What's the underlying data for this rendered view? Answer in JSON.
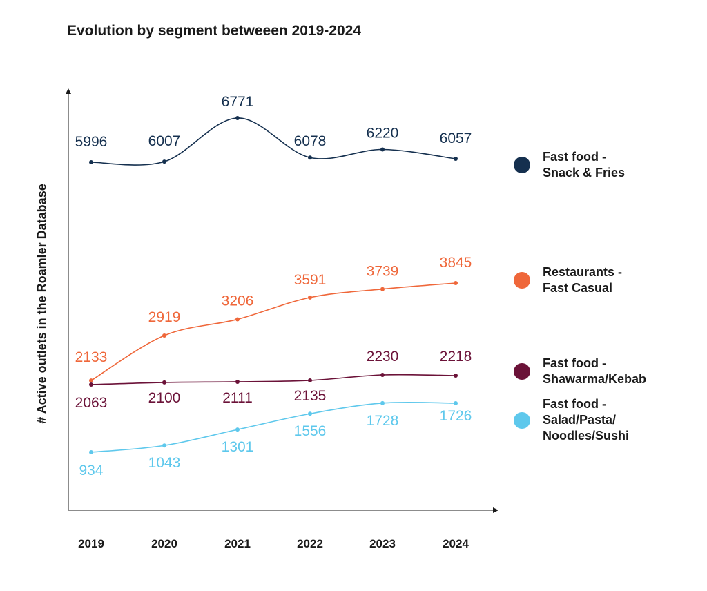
{
  "chart_data": {
    "type": "line",
    "title": "Evolution by segment betweeen 2019-2024",
    "ylabel": "# Active outlets in the Roamler Database",
    "xlabel": "",
    "categories": [
      "2019",
      "2020",
      "2021",
      "2022",
      "2023",
      "2024"
    ],
    "ylim": [
      0,
      7000
    ],
    "grid": false,
    "legend_position": "right",
    "series": [
      {
        "name": "Fast food - Snack & Fries",
        "legend_lines": [
          "Fast food -",
          "Snack & Fries"
        ],
        "color": "#15304f",
        "values": [
          5996,
          6007,
          6771,
          6078,
          6220,
          6057
        ]
      },
      {
        "name": "Restaurants - Fast Casual",
        "legend_lines": [
          "Restaurants -",
          "Fast Casual"
        ],
        "color": "#ef673a",
        "values": [
          2133,
          2919,
          3206,
          3591,
          3739,
          3845
        ]
      },
      {
        "name": "Fast food - Shawarma/Kebab",
        "legend_lines": [
          "Fast food -",
          "Shawarma/Kebab"
        ],
        "color": "#6b1238",
        "values": [
          2063,
          2100,
          2111,
          2135,
          2230,
          2218
        ]
      },
      {
        "name": "Fast food - Salad/Pasta/Noodles/Sushi",
        "legend_lines": [
          "Fast food -",
          "Salad/Pasta/",
          "Noodles/Sushi"
        ],
        "color": "#5ec8ec",
        "values": [
          934,
          1043,
          1301,
          1556,
          1728,
          1726
        ]
      }
    ]
  }
}
